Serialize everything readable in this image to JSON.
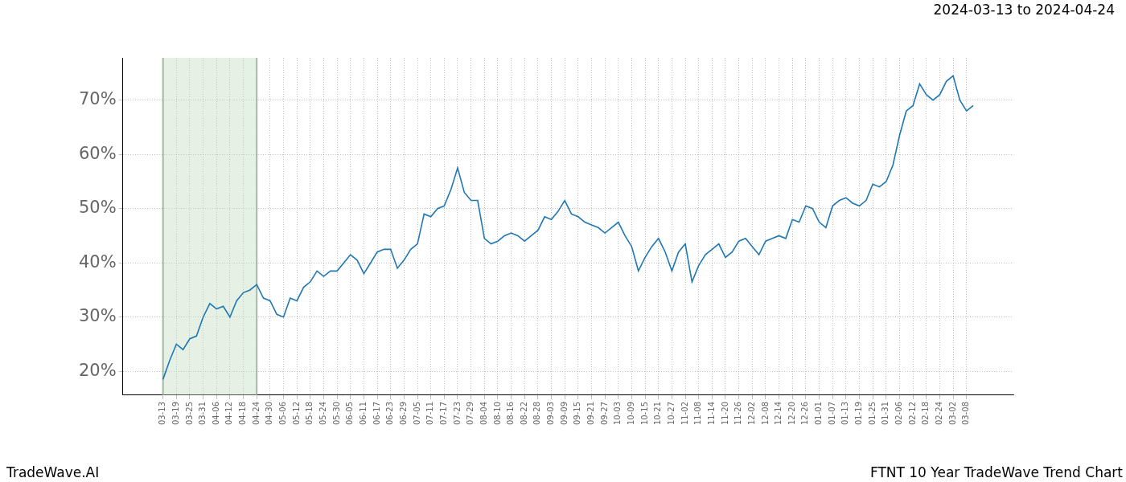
{
  "chart_data": {
    "type": "line",
    "title": "2024-03-13 to 2024-04-24",
    "footer_left": "TradeWave.AI",
    "footer_right": "FTNT 10 Year TradeWave Trend Chart",
    "categories": [
      "03-13",
      null,
      "03-19",
      null,
      "03-25",
      null,
      "03-31",
      null,
      "04-06",
      null,
      "04-12",
      null,
      "04-18",
      null,
      "04-24",
      null,
      "04-30",
      null,
      "05-06",
      null,
      "05-12",
      null,
      "05-18",
      null,
      "05-24",
      null,
      "05-30",
      null,
      "06-05",
      null,
      "06-11",
      null,
      "06-17",
      null,
      "06-23",
      null,
      "06-29",
      null,
      "07-05",
      null,
      "07-11",
      null,
      "07-17",
      null,
      "07-23",
      null,
      "07-29",
      null,
      "08-04",
      null,
      "08-10",
      null,
      "08-16",
      null,
      "08-22",
      null,
      "08-28",
      null,
      "09-03",
      null,
      "09-09",
      null,
      "09-15",
      null,
      "09-21",
      null,
      "09-27",
      null,
      "10-03",
      null,
      "10-09",
      null,
      "10-15",
      null,
      "10-21",
      null,
      "10-27",
      null,
      "11-02",
      null,
      "11-08",
      null,
      "11-14",
      null,
      "11-20",
      null,
      "11-26",
      null,
      "12-02",
      null,
      "12-08",
      null,
      "12-14",
      null,
      "12-20",
      null,
      "12-26",
      null,
      "01-01",
      null,
      "01-07",
      null,
      "01-13",
      null,
      "01-19",
      null,
      "01-25",
      null,
      "01-31",
      null,
      "02-06",
      null,
      "02-12",
      null,
      "02-18",
      null,
      "02-24",
      null,
      "03-02",
      null,
      "03-08",
      null
    ],
    "values": [
      18.5,
      22,
      25,
      24,
      26,
      26.5,
      30,
      32.5,
      31.5,
      32,
      30,
      33,
      34.5,
      35,
      36,
      33.5,
      33,
      30.5,
      30,
      33.5,
      33,
      35.5,
      36.5,
      38.5,
      37.5,
      38.5,
      38.5,
      40,
      41.5,
      40.5,
      38,
      40,
      42,
      42.5,
      42.5,
      39,
      40.5,
      42.5,
      43.5,
      49,
      48.5,
      50,
      50.5,
      53.5,
      57.5,
      53,
      51.5,
      51.5,
      44.5,
      43.5,
      44,
      45,
      45.5,
      45,
      44,
      45,
      46,
      48.5,
      48,
      49.5,
      51.5,
      49,
      48.5,
      47.5,
      47,
      46.5,
      45.5,
      46.5,
      47.5,
      45,
      43,
      38.5,
      41,
      43,
      44.5,
      42,
      38.5,
      42,
      43.5,
      36.5,
      39.5,
      41.5,
      42.5,
      43.5,
      41,
      42,
      44,
      44.5,
      43,
      41.5,
      44,
      44.5,
      45,
      44.5,
      48,
      47.5,
      50.5,
      50,
      47.5,
      46.5,
      50.5,
      51.5,
      52,
      51,
      50.5,
      51.5,
      54.5,
      54,
      55,
      58,
      63.5,
      68,
      69,
      73,
      71,
      70,
      71,
      73.5,
      74.5,
      70,
      68,
      69
    ],
    "color": "#1f77b4",
    "highlight": [
      "03-13",
      "04-24"
    ],
    "ylim": [
      15.6,
      77.8
    ],
    "yticks": [
      {
        "value": 20,
        "label": "20%"
      },
      {
        "value": 30,
        "label": "30%"
      },
      {
        "value": 40,
        "label": "40%"
      },
      {
        "value": 50,
        "label": "50%"
      },
      {
        "value": 60,
        "label": "60%"
      },
      {
        "value": 70,
        "label": "70%"
      }
    ],
    "grid": true
  }
}
